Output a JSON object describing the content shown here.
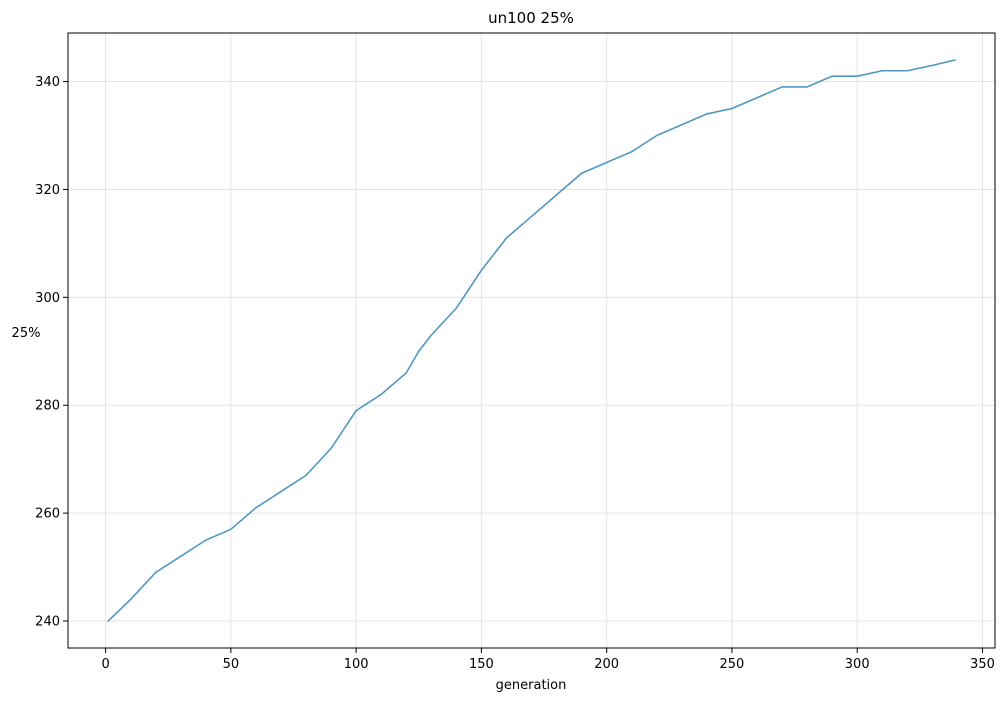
{
  "chart_data": {
    "type": "line",
    "title": "un100 25%",
    "xlabel": "generation",
    "ylabel": "25%",
    "xlim": [
      -15,
      355
    ],
    "ylim": [
      235,
      349
    ],
    "xticks": [
      0,
      50,
      100,
      150,
      200,
      250,
      300,
      350
    ],
    "yticks": [
      240,
      260,
      280,
      300,
      320,
      340
    ],
    "grid": true,
    "line_color": "#4d98c2",
    "series": [
      {
        "x": [
          1,
          10,
          20,
          30,
          40,
          50,
          60,
          70,
          80,
          90,
          100,
          110,
          120,
          125,
          130,
          140,
          150,
          160,
          170,
          180,
          190,
          200,
          210,
          220,
          230,
          240,
          250,
          260,
          270,
          280,
          290,
          300,
          310,
          320,
          330,
          339
        ],
        "y": [
          240,
          244,
          249,
          252,
          255,
          257,
          261,
          264,
          267,
          272,
          279,
          282,
          286,
          290,
          293,
          298,
          305,
          311,
          315,
          319,
          323,
          325,
          327,
          330,
          332,
          334,
          335,
          337,
          339,
          339,
          341,
          341,
          342,
          342,
          343,
          344
        ]
      }
    ]
  }
}
